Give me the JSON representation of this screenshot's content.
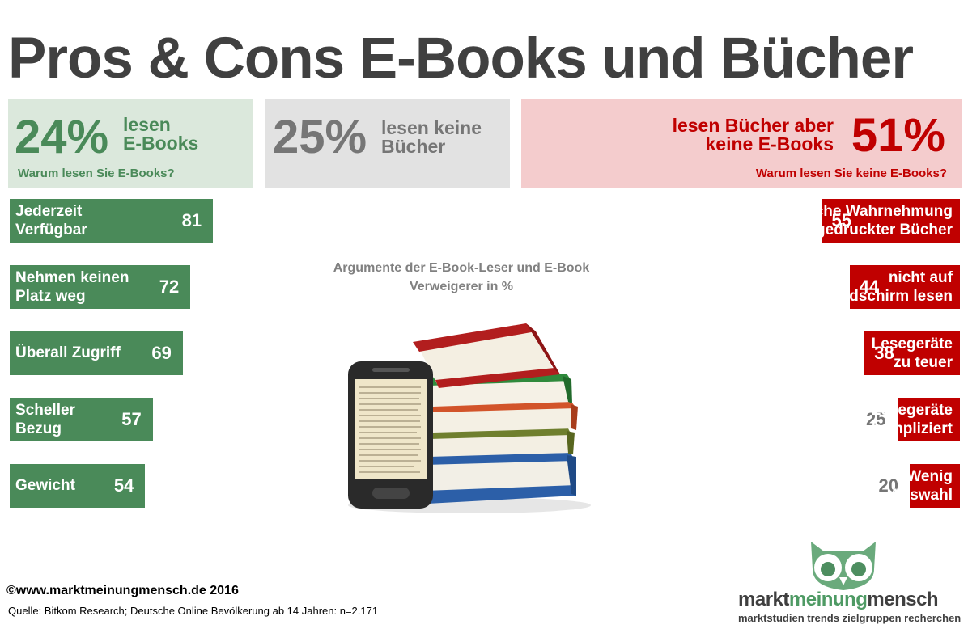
{
  "title": "Pros & Cons E-Books und Bücher",
  "summary": {
    "ebook": {
      "pct": "24%",
      "label_line1": "lesen",
      "label_line2": "E-Books",
      "question": "Warum lesen Sie E-Books?"
    },
    "nobooks": {
      "pct": "25%",
      "label_line1": "lesen keine",
      "label_line2": "Bücher"
    },
    "books_only": {
      "pct": "51%",
      "label_line1": "lesen Bücher aber",
      "label_line2": "keine E-Books",
      "question": "Warum lesen Sie keine E-Books?"
    }
  },
  "subtitle_line1": "Argumente der  E-Book-Leser und E-Book",
  "subtitle_line2": "Verweigerer in %",
  "colors": {
    "pro": "#4a8a59",
    "con": "#c00000",
    "muted_value": "#767676"
  },
  "chart_data": [
    {
      "type": "bar",
      "orientation": "horizontal",
      "title": "Warum lesen Sie E-Books?",
      "categories": [
        {
          "line1": "Jederzeit",
          "line2": "Verfügbar"
        },
        {
          "line1": "Nehmen keinen",
          "line2": "Platz weg"
        },
        {
          "line1": "Überall Zugriff",
          "line2": ""
        },
        {
          "line1": "Scheller",
          "line2": "Bezug"
        },
        {
          "line1": "Gewicht",
          "line2": ""
        }
      ],
      "values": [
        81,
        72,
        69,
        57,
        54
      ],
      "xlim": [
        0,
        100
      ]
    },
    {
      "type": "bar",
      "orientation": "horizontal",
      "title": "Warum lesen Sie keine E-Books?",
      "categories": [
        {
          "line1": "sinnliche Wahrnehmung",
          "line2": "gedruckter Bücher"
        },
        {
          "line1": "nicht auf",
          "line2": "Bildschirm lesen"
        },
        {
          "line1": "Lesegeräte",
          "line2": "zu teuer"
        },
        {
          "line1": "Lesegeräte",
          "line2": "kompliziert"
        },
        {
          "line1": "Wenig",
          "line2": "Auswahl"
        }
      ],
      "values": [
        55,
        44,
        38,
        25,
        20
      ],
      "xlim": [
        0,
        100
      ]
    }
  ],
  "footer": {
    "copyright": "©www.marktmeinungmensch.de 2016",
    "source": "Quelle: Bitkom Research; Deutsche Online Bevölkerung  ab 14 Jahren: n=2.171"
  },
  "brand": {
    "part1": "markt",
    "part2": "meinung",
    "part3": "mensch",
    "tagline": "marktstudien trends zielgruppen recherchen"
  }
}
